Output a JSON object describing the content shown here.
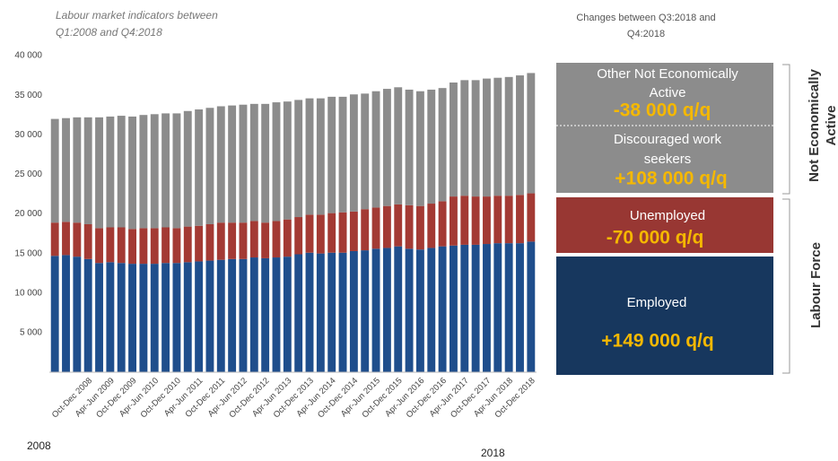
{
  "chart_data": {
    "type": "stacked-bar",
    "title": [
      "Labour market indicators between",
      "Q1:2008 and Q4:2018"
    ],
    "categories": [
      null,
      null,
      null,
      "Oct-Dec 2008",
      null,
      "Apr-Jun 2009",
      null,
      "Oct-Dec 2009",
      null,
      "Apr-Jun 2010",
      null,
      "Oct-Dec 2010",
      null,
      "Apr-Jun 2011",
      null,
      "Oct-Dec 2011",
      null,
      "Apr-Jun 2012",
      null,
      "Oct-Dec 2012",
      null,
      "Apr-Jun 2013",
      null,
      "Oct-Dec 2013",
      null,
      "Apr-Jun 2014",
      null,
      "Oct-Dec 2014",
      null,
      "Apr-Jun 2015",
      null,
      "Oct-Dec 2015",
      null,
      "Apr-Jun 2016",
      null,
      "Oct-Dec 2016",
      null,
      "Apr-Jun 2017",
      null,
      "Oct-Dec 2017",
      null,
      "Apr-Jun 2018",
      null,
      "Oct-Dec 2018"
    ],
    "year_labels": [
      "2008",
      "2018"
    ],
    "ylim": [
      0,
      40000
    ],
    "yticks": [
      {
        "value": 5000,
        "label": "5 000"
      },
      {
        "value": 10000,
        "label": "10 000"
      },
      {
        "value": 15000,
        "label": "15 000"
      },
      {
        "value": 20000,
        "label": "20 000"
      },
      {
        "value": 25000,
        "label": "25 000"
      },
      {
        "value": 30000,
        "label": "30 000"
      },
      {
        "value": 35000,
        "label": "35 000"
      },
      {
        "value": 40000,
        "label": "40 000"
      }
    ],
    "series": [
      {
        "name": "Employed",
        "color": "#1f4e8c",
        "values": [
          14700,
          14800,
          14600,
          14300,
          13800,
          13900,
          13800,
          13700,
          13700,
          13700,
          13800,
          13800,
          13900,
          14000,
          14100,
          14200,
          14300,
          14300,
          14500,
          14400,
          14500,
          14600,
          14900,
          15100,
          15000,
          15100,
          15100,
          15300,
          15400,
          15600,
          15700,
          15900,
          15600,
          15500,
          15700,
          15900,
          16000,
          16100,
          16100,
          16200,
          16300,
          16300,
          16300,
          16500
        ]
      },
      {
        "name": "Unemployed",
        "color": "#a33a34",
        "values": [
          4200,
          4200,
          4300,
          4400,
          4400,
          4400,
          4500,
          4400,
          4500,
          4500,
          4500,
          4400,
          4500,
          4500,
          4600,
          4700,
          4600,
          4600,
          4600,
          4500,
          4600,
          4700,
          4700,
          4800,
          4900,
          5000,
          5100,
          5000,
          5200,
          5200,
          5300,
          5300,
          5500,
          5500,
          5600,
          5700,
          6200,
          6200,
          6100,
          6000,
          6000,
          6000,
          6100,
          6100
        ]
      },
      {
        "name": "Not Economically Active",
        "color": "#8c8c8c",
        "values": [
          13100,
          13100,
          13300,
          13500,
          14000,
          14000,
          14100,
          14200,
          14300,
          14400,
          14400,
          14500,
          14600,
          14700,
          14700,
          14700,
          14800,
          14900,
          14800,
          15000,
          15000,
          14900,
          14800,
          14700,
          14700,
          14700,
          14600,
          14800,
          14600,
          14700,
          14800,
          14800,
          14600,
          14500,
          14400,
          14300,
          14400,
          14600,
          14700,
          14900,
          14900,
          15000,
          15100,
          15200
        ]
      }
    ]
  },
  "panel": {
    "title": "Changes between Q3:2018 and",
    "title2": "Q4:2018",
    "other_nea": [
      "Other Not Economically",
      "Active"
    ],
    "other_nea_change": "-38 000 q/q",
    "discouraged": [
      "Discouraged work",
      "seekers"
    ],
    "discouraged_change": "+108 000 q/q",
    "unemployed": "Unemployed",
    "unemployed_change": "-70 000 q/q",
    "employed": "Employed",
    "employed_change": "+149  000 q/q",
    "bracket_nea": [
      "Not Economically",
      "Active"
    ],
    "bracket_lf": "Labour  Force"
  }
}
